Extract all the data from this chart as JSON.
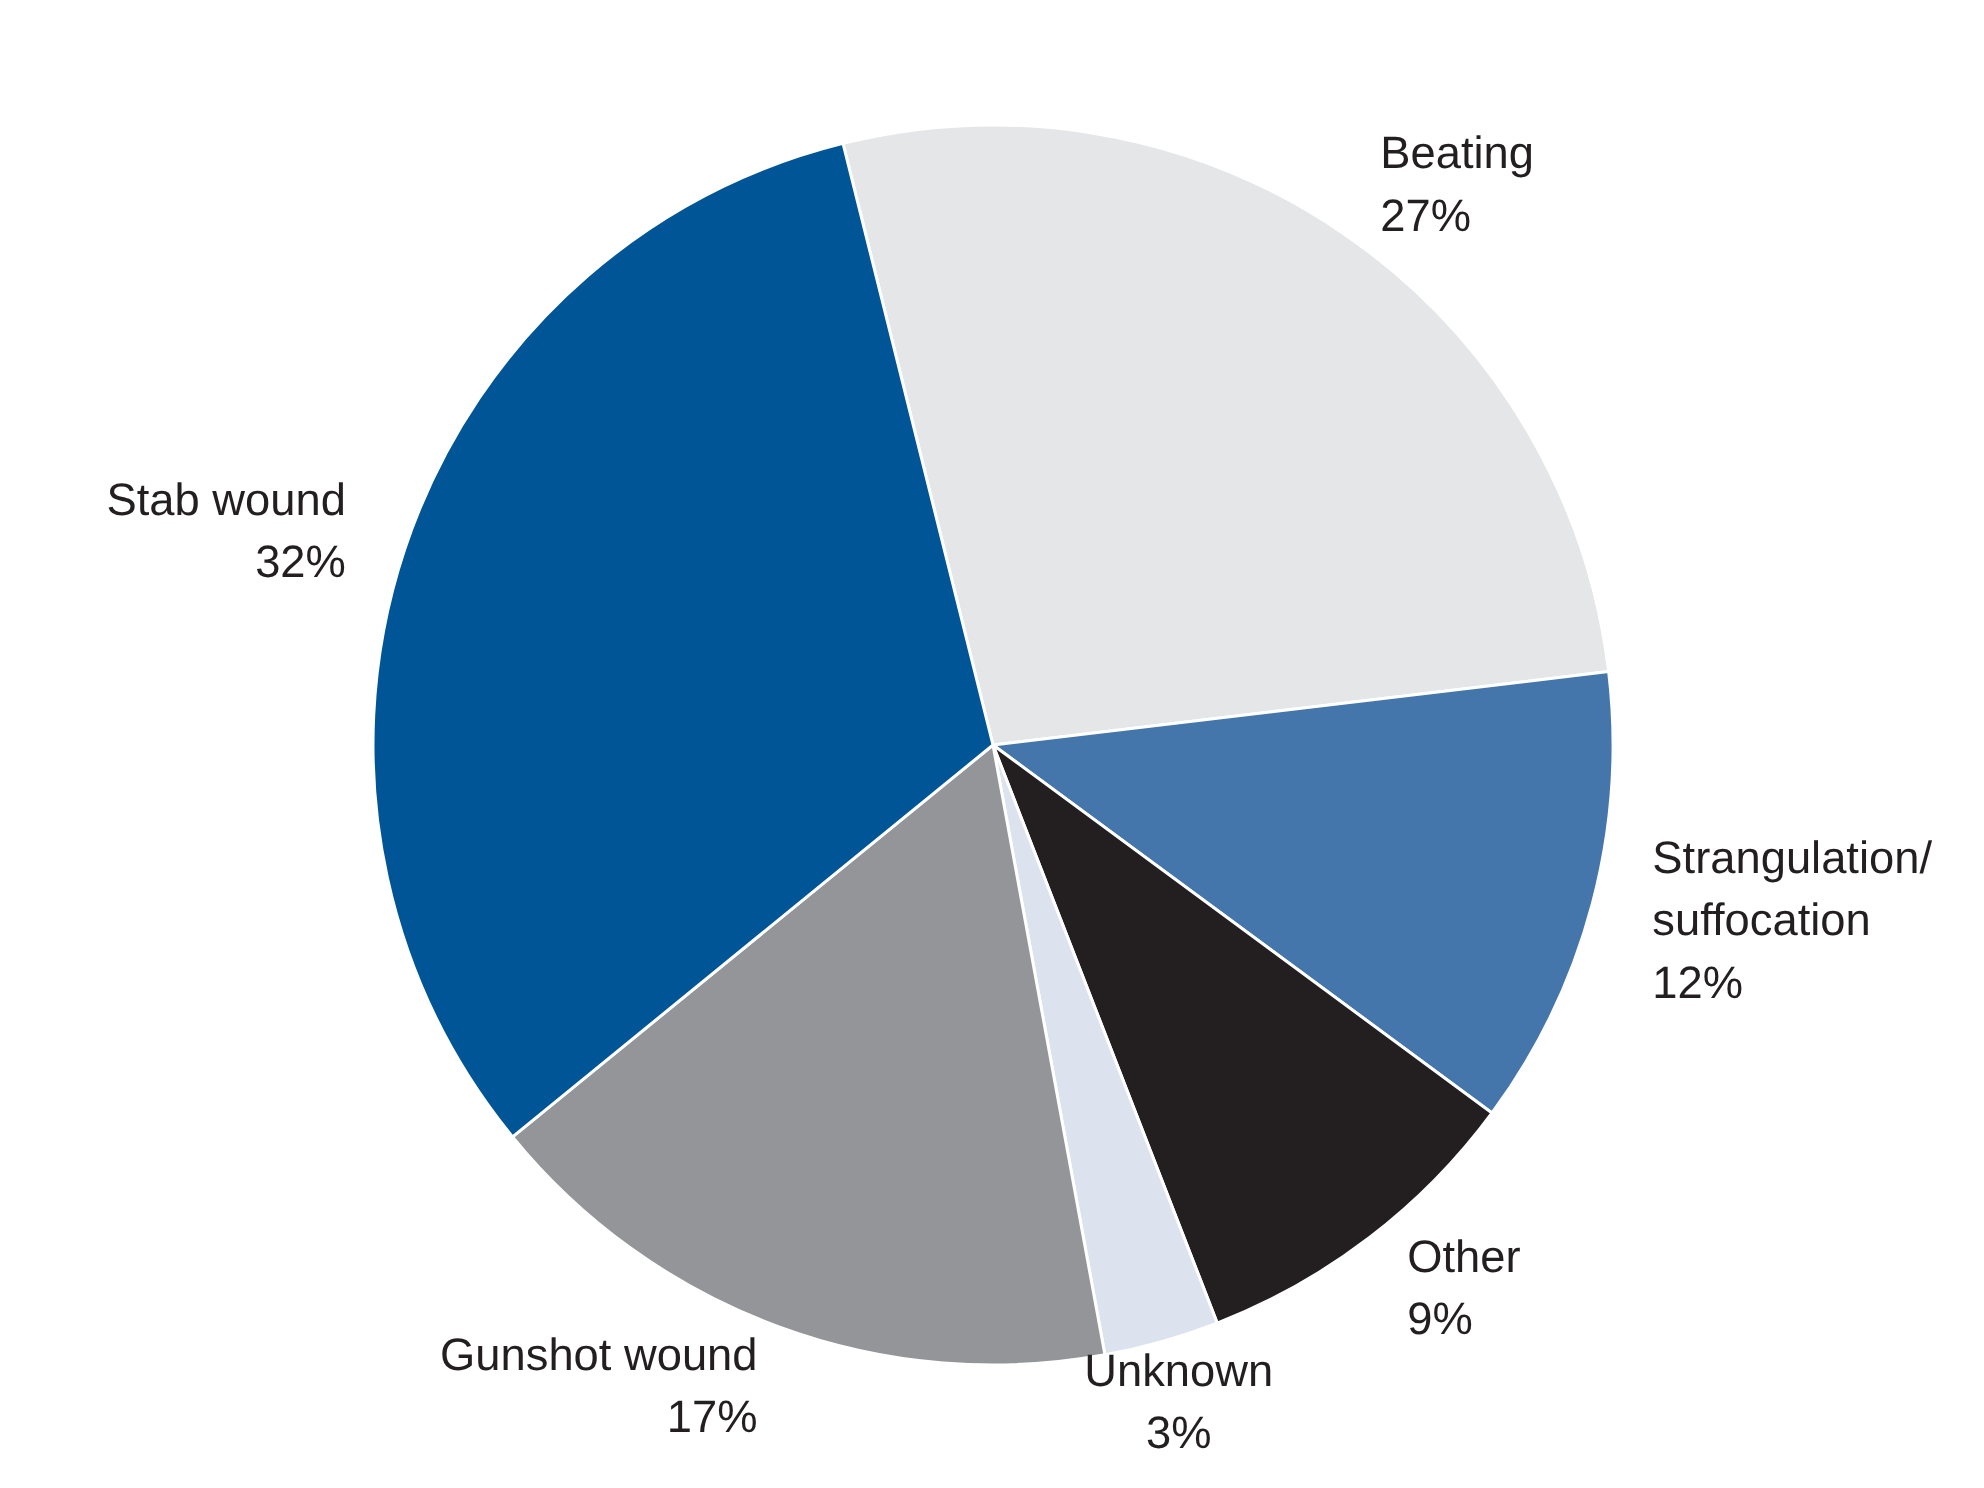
{
  "chart_data": {
    "type": "pie",
    "categories": [
      "Beating",
      "Strangulation/suffocation",
      "Other",
      "Unknown",
      "Gunshot wound",
      "Stab wound"
    ],
    "values": [
      27,
      12,
      9,
      3,
      17,
      32
    ],
    "value_labels": [
      "27%",
      "12%",
      "9%",
      "3%",
      "17%",
      "32%"
    ],
    "colors": [
      "#e5e6e8",
      "#4476ab",
      "#231f20",
      "#dce3ef",
      "#939598",
      "#005596"
    ]
  }
}
